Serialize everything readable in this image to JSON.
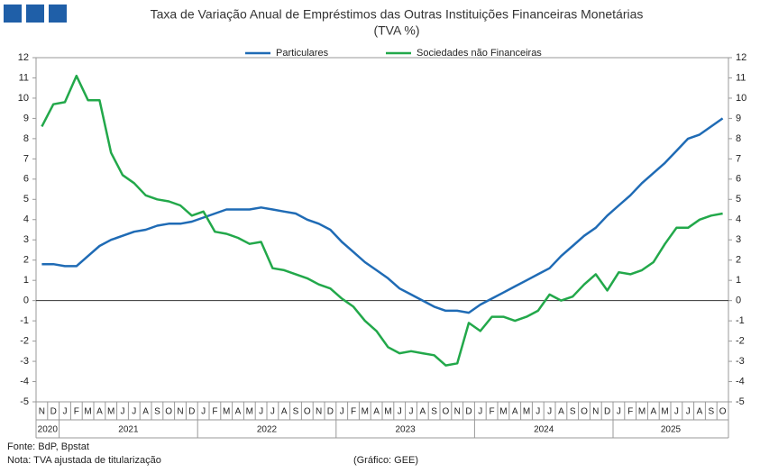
{
  "chart_data": {
    "type": "line",
    "title": "Taxa de Variação Anual de Empréstimos das Outras Instituições Financeiras Monetárias",
    "subtitle": "(TVA %)",
    "month_groups": [
      {
        "year": "2020",
        "months": [
          "N",
          "D"
        ]
      },
      {
        "year": "2021",
        "months": [
          "J",
          "F",
          "M",
          "A",
          "M",
          "J",
          "J",
          "A",
          "S",
          "O",
          "N",
          "D"
        ]
      },
      {
        "year": "2022",
        "months": [
          "J",
          "F",
          "M",
          "A",
          "M",
          "J",
          "J",
          "A",
          "S",
          "O",
          "N",
          "D"
        ]
      },
      {
        "year": "2023",
        "months": [
          "J",
          "F",
          "M",
          "A",
          "M",
          "J",
          "J",
          "A",
          "S",
          "O",
          "N",
          "D"
        ]
      },
      {
        "year": "2024",
        "months": [
          "J",
          "F",
          "M",
          "A",
          "M",
          "J",
          "J",
          "A",
          "S",
          "O",
          "N",
          "D"
        ]
      },
      {
        "year": "2025",
        "months": [
          "J",
          "F",
          "M",
          "A",
          "M",
          "J",
          "J",
          "A",
          "S",
          "O"
        ]
      }
    ],
    "series": [
      {
        "name": "Particulares",
        "color": "#1f6bb5",
        "values": [
          1.8,
          1.8,
          1.7,
          1.7,
          2.2,
          2.7,
          3.0,
          3.2,
          3.4,
          3.5,
          3.7,
          3.8,
          3.8,
          3.9,
          4.1,
          4.3,
          4.5,
          4.5,
          4.5,
          4.6,
          4.5,
          4.4,
          4.3,
          4.0,
          3.8,
          3.5,
          2.9,
          2.4,
          1.9,
          1.5,
          1.1,
          0.6,
          0.3,
          0.0,
          -0.3,
          -0.5,
          -0.5,
          -0.6,
          -0.2,
          0.1,
          0.4,
          0.7,
          1.0,
          1.3,
          1.6,
          2.2,
          2.7,
          3.2,
          3.6,
          4.2,
          4.7,
          5.2,
          5.8,
          6.3,
          6.8,
          7.4,
          8.0,
          8.2,
          8.6,
          9.0
        ]
      },
      {
        "name": "Sociedades não Financeiras",
        "color": "#22a84a",
        "values": [
          8.6,
          9.7,
          9.8,
          11.1,
          9.9,
          9.9,
          7.3,
          6.2,
          5.8,
          5.2,
          5.0,
          4.9,
          4.7,
          4.2,
          4.4,
          3.4,
          3.3,
          3.1,
          2.8,
          2.9,
          1.6,
          1.5,
          1.3,
          1.1,
          0.8,
          0.6,
          0.1,
          -0.3,
          -1.0,
          -1.5,
          -2.3,
          -2.6,
          -2.5,
          -2.6,
          -2.7,
          -3.2,
          -3.1,
          -1.1,
          -1.5,
          -0.8,
          -0.8,
          -1.0,
          -0.8,
          -0.5,
          0.3,
          0.0,
          0.2,
          0.8,
          1.3,
          0.5,
          1.4,
          1.3,
          1.5,
          1.9,
          2.8,
          3.6,
          3.6,
          4.0,
          4.2,
          4.3
        ]
      }
    ],
    "ylim": [
      -5,
      12
    ],
    "yticks": [
      -5,
      -4,
      -3,
      -2,
      -1,
      0,
      1,
      2,
      3,
      4,
      5,
      6,
      7,
      8,
      9,
      10,
      11,
      12
    ],
    "y2lim": [
      -5,
      12
    ],
    "y2ticks": [
      -5,
      -4,
      -3,
      -2,
      -1,
      0,
      1,
      2,
      3,
      4,
      5,
      6,
      7,
      8,
      9,
      10,
      11,
      12
    ],
    "source": "Fonte: BdP, Bpstat",
    "note": "Nota: TVA ajustada de titularização",
    "credit": "(Gráfico: GEE)"
  }
}
